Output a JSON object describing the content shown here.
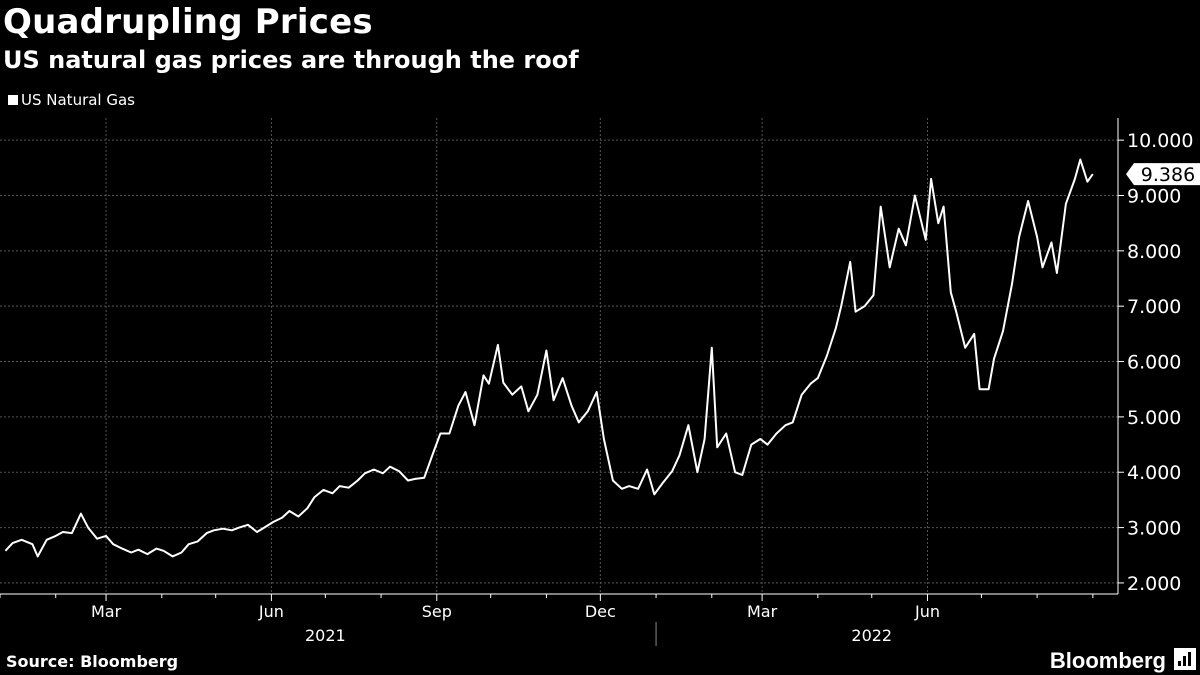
{
  "header": {
    "title": "Quadrupling Prices",
    "subtitle": "US natural gas prices are through the roof"
  },
  "footer": {
    "source": "Source: Bloomberg",
    "brand": "Bloomberg",
    "brand_icon": "bloomberg-terminal-icon"
  },
  "colors": {
    "background": "#000000",
    "line": "#ffffff",
    "grid": "#555555",
    "text": "#ffffff"
  },
  "chart_data": {
    "type": "line",
    "series": [
      {
        "name": "US Natural Gas",
        "last_value_label": "9.386",
        "points": [
          [
            "2021-01-04",
            2.58
          ],
          [
            "2021-01-08",
            2.72
          ],
          [
            "2021-01-13",
            2.78
          ],
          [
            "2021-01-19",
            2.7
          ],
          [
            "2021-01-22",
            2.48
          ],
          [
            "2021-01-27",
            2.78
          ],
          [
            "2021-02-01",
            2.85
          ],
          [
            "2021-02-05",
            2.92
          ],
          [
            "2021-02-10",
            2.9
          ],
          [
            "2021-02-15",
            3.25
          ],
          [
            "2021-02-19",
            3.0
          ],
          [
            "2021-02-24",
            2.8
          ],
          [
            "2021-03-01",
            2.85
          ],
          [
            "2021-03-05",
            2.7
          ],
          [
            "2021-03-10",
            2.62
          ],
          [
            "2021-03-15",
            2.55
          ],
          [
            "2021-03-19",
            2.6
          ],
          [
            "2021-03-24",
            2.52
          ],
          [
            "2021-03-29",
            2.62
          ],
          [
            "2021-04-02",
            2.58
          ],
          [
            "2021-04-07",
            2.48
          ],
          [
            "2021-04-12",
            2.55
          ],
          [
            "2021-04-16",
            2.7
          ],
          [
            "2021-04-21",
            2.75
          ],
          [
            "2021-04-26",
            2.9
          ],
          [
            "2021-04-30",
            2.95
          ],
          [
            "2021-05-05",
            2.98
          ],
          [
            "2021-05-10",
            2.95
          ],
          [
            "2021-05-14",
            3.0
          ],
          [
            "2021-05-19",
            3.05
          ],
          [
            "2021-05-24",
            2.92
          ],
          [
            "2021-05-28",
            3.0
          ],
          [
            "2021-06-02",
            3.1
          ],
          [
            "2021-06-07",
            3.18
          ],
          [
            "2021-06-11",
            3.3
          ],
          [
            "2021-06-16",
            3.2
          ],
          [
            "2021-06-21",
            3.35
          ],
          [
            "2021-06-25",
            3.55
          ],
          [
            "2021-06-30",
            3.68
          ],
          [
            "2021-07-05",
            3.62
          ],
          [
            "2021-07-09",
            3.75
          ],
          [
            "2021-07-14",
            3.72
          ],
          [
            "2021-07-19",
            3.85
          ],
          [
            "2021-07-23",
            3.98
          ],
          [
            "2021-07-28",
            4.05
          ],
          [
            "2021-08-02",
            3.98
          ],
          [
            "2021-08-06",
            4.1
          ],
          [
            "2021-08-11",
            4.02
          ],
          [
            "2021-08-16",
            3.85
          ],
          [
            "2021-08-20",
            3.88
          ],
          [
            "2021-08-25",
            3.9
          ],
          [
            "2021-08-30",
            4.35
          ],
          [
            "2021-09-03",
            4.7
          ],
          [
            "2021-09-08",
            4.7
          ],
          [
            "2021-09-13",
            5.2
          ],
          [
            "2021-09-17",
            5.45
          ],
          [
            "2021-09-22",
            4.85
          ],
          [
            "2021-09-27",
            5.75
          ],
          [
            "2021-09-30",
            5.6
          ],
          [
            "2021-10-05",
            6.3
          ],
          [
            "2021-10-08",
            5.62
          ],
          [
            "2021-10-13",
            5.4
          ],
          [
            "2021-10-18",
            5.55
          ],
          [
            "2021-10-22",
            5.1
          ],
          [
            "2021-10-27",
            5.4
          ],
          [
            "2021-11-01",
            6.2
          ],
          [
            "2021-11-05",
            5.3
          ],
          [
            "2021-11-10",
            5.7
          ],
          [
            "2021-11-15",
            5.2
          ],
          [
            "2021-11-19",
            4.9
          ],
          [
            "2021-11-24",
            5.1
          ],
          [
            "2021-11-29",
            5.45
          ],
          [
            "2021-12-03",
            4.6
          ],
          [
            "2021-12-08",
            3.85
          ],
          [
            "2021-12-13",
            3.7
          ],
          [
            "2021-12-17",
            3.75
          ],
          [
            "2021-12-22",
            3.7
          ],
          [
            "2021-12-27",
            4.05
          ],
          [
            "2021-12-31",
            3.6
          ],
          [
            "2022-01-05",
            3.82
          ],
          [
            "2022-01-10",
            4.02
          ],
          [
            "2022-01-14",
            4.3
          ],
          [
            "2022-01-19",
            4.85
          ],
          [
            "2022-01-24",
            4.0
          ],
          [
            "2022-01-28",
            4.6
          ],
          [
            "2022-02-01",
            6.25
          ],
          [
            "2022-02-04",
            4.45
          ],
          [
            "2022-02-09",
            4.7
          ],
          [
            "2022-02-14",
            4.0
          ],
          [
            "2022-02-18",
            3.95
          ],
          [
            "2022-02-23",
            4.5
          ],
          [
            "2022-02-28",
            4.6
          ],
          [
            "2022-03-04",
            4.5
          ],
          [
            "2022-03-09",
            4.7
          ],
          [
            "2022-03-14",
            4.85
          ],
          [
            "2022-03-18",
            4.9
          ],
          [
            "2022-03-23",
            5.4
          ],
          [
            "2022-03-28",
            5.6
          ],
          [
            "2022-04-01",
            5.7
          ],
          [
            "2022-04-06",
            6.1
          ],
          [
            "2022-04-11",
            6.6
          ],
          [
            "2022-04-14",
            7.0
          ],
          [
            "2022-04-19",
            7.8
          ],
          [
            "2022-04-22",
            6.9
          ],
          [
            "2022-04-27",
            7.0
          ],
          [
            "2022-05-02",
            7.2
          ],
          [
            "2022-05-06",
            8.8
          ],
          [
            "2022-05-11",
            7.7
          ],
          [
            "2022-05-16",
            8.4
          ],
          [
            "2022-05-20",
            8.1
          ],
          [
            "2022-05-25",
            9.0
          ],
          [
            "2022-05-31",
            8.2
          ],
          [
            "2022-06-03",
            9.3
          ],
          [
            "2022-06-07",
            8.5
          ],
          [
            "2022-06-10",
            8.8
          ],
          [
            "2022-06-14",
            7.25
          ],
          [
            "2022-06-17",
            6.9
          ],
          [
            "2022-06-22",
            6.25
          ],
          [
            "2022-06-27",
            6.5
          ],
          [
            "2022-06-30",
            5.5
          ],
          [
            "2022-07-05",
            5.5
          ],
          [
            "2022-07-08",
            6.05
          ],
          [
            "2022-07-13",
            6.55
          ],
          [
            "2022-07-18",
            7.4
          ],
          [
            "2022-07-22",
            8.25
          ],
          [
            "2022-07-27",
            8.9
          ],
          [
            "2022-08-01",
            8.25
          ],
          [
            "2022-08-04",
            7.7
          ],
          [
            "2022-08-09",
            8.15
          ],
          [
            "2022-08-12",
            7.6
          ],
          [
            "2022-08-17",
            8.85
          ],
          [
            "2022-08-22",
            9.3
          ],
          [
            "2022-08-25",
            9.65
          ],
          [
            "2022-08-29",
            9.25
          ],
          [
            "2022-09-01",
            9.386
          ]
        ]
      }
    ],
    "y_ticks": [
      "2.000",
      "3.000",
      "4.000",
      "5.000",
      "6.000",
      "7.000",
      "8.000",
      "9.000",
      "10.000"
    ],
    "ylim": [
      1.8,
      10.4
    ],
    "x_ticks": [
      {
        "date": "2021-03-01",
        "label": "Mar"
      },
      {
        "date": "2021-06-01",
        "label": "Jun"
      },
      {
        "date": "2021-09-01",
        "label": "Sep"
      },
      {
        "date": "2021-12-01",
        "label": "Dec"
      },
      {
        "date": "2022-03-01",
        "label": "Mar"
      },
      {
        "date": "2022-06-01",
        "label": "Jun"
      }
    ],
    "x_minor_ticks": [
      "2021-01-01",
      "2021-02-01",
      "2021-04-01",
      "2021-05-01",
      "2021-07-01",
      "2021-08-01",
      "2021-10-01",
      "2021-11-01",
      "2022-01-01",
      "2022-02-01",
      "2022-04-01",
      "2022-05-01",
      "2022-07-01",
      "2022-08-01",
      "2022-09-01"
    ],
    "x_year_labels": [
      {
        "date": "2021-07-01",
        "label": "2021"
      },
      {
        "date": "2022-05-01",
        "label": "2022"
      }
    ],
    "xlim": [
      "2021-01-01",
      "2022-09-15"
    ],
    "grid": true,
    "legend_position": "top-left",
    "y_axis_position": "right"
  }
}
